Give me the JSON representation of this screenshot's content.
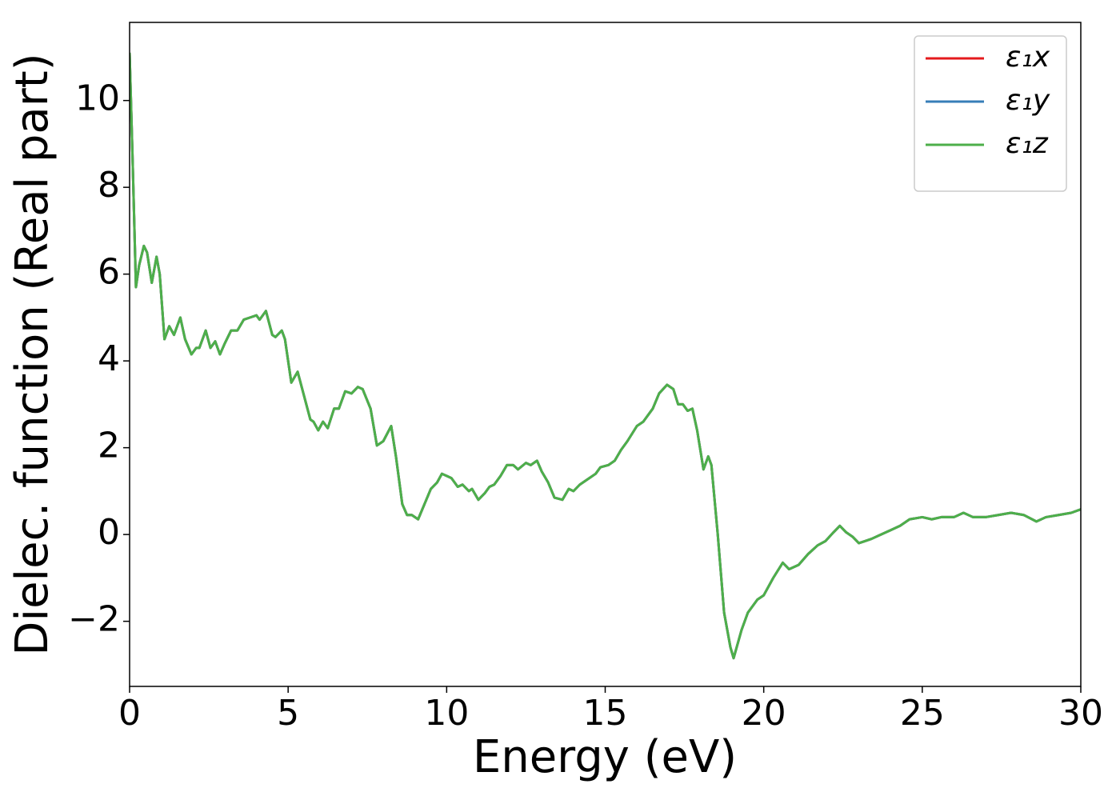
{
  "chart_data": {
    "type": "line",
    "xlabel": "Energy (eV)",
    "ylabel": "Dielec. function (Real part)",
    "xlim": [
      0,
      30
    ],
    "xticks": [
      0,
      5,
      10,
      15,
      20,
      25,
      30
    ],
    "ylim": [
      -3.5,
      11.8
    ],
    "yticks": [
      {
        "value": -2,
        "label": "−2"
      },
      0,
      2,
      4,
      6,
      8,
      10
    ],
    "legend": "upper right",
    "x": [
      0,
      0.1,
      0.2,
      0.3,
      0.45,
      0.55,
      0.7,
      0.85,
      0.95,
      1.1,
      1.25,
      1.4,
      1.6,
      1.75,
      1.95,
      2.1,
      2.2,
      2.4,
      2.55,
      2.7,
      2.85,
      3.0,
      3.2,
      3.4,
      3.6,
      3.8,
      4.0,
      4.1,
      4.3,
      4.5,
      4.6,
      4.8,
      4.9,
      5.1,
      5.3,
      5.5,
      5.7,
      5.8,
      5.95,
      6.1,
      6.25,
      6.45,
      6.6,
      6.8,
      7.0,
      7.2,
      7.35,
      7.6,
      7.8,
      8.0,
      8.25,
      8.4,
      8.6,
      8.75,
      8.9,
      9.1,
      9.3,
      9.5,
      9.7,
      9.85,
      10.0,
      10.15,
      10.35,
      10.5,
      10.7,
      10.8,
      11.0,
      11.2,
      11.35,
      11.5,
      11.7,
      11.9,
      12.1,
      12.25,
      12.5,
      12.65,
      12.85,
      13.0,
      13.2,
      13.4,
      13.65,
      13.85,
      14.0,
      14.2,
      14.5,
      14.7,
      14.85,
      15.1,
      15.3,
      15.5,
      15.7,
      16.0,
      16.2,
      16.5,
      16.7,
      16.95,
      17.15,
      17.3,
      17.45,
      17.6,
      17.75,
      17.9,
      18.1,
      18.25,
      18.35,
      18.55,
      18.75,
      18.95,
      19.05,
      19.3,
      19.5,
      19.8,
      20.0,
      20.3,
      20.6,
      20.8,
      21.1,
      21.4,
      21.7,
      21.95,
      22.2,
      22.4,
      22.6,
      22.8,
      23.0,
      23.2,
      23.4,
      23.7,
      24.0,
      24.3,
      24.6,
      25.0,
      25.3,
      25.6,
      26.0,
      26.3,
      26.6,
      27.0,
      27.4,
      27.8,
      28.2,
      28.6,
      28.9,
      29.3,
      29.7,
      30
    ],
    "series": [
      {
        "name": "ε₁x",
        "color": "#e41a1c",
        "values": [
          11.1,
          8.5,
          5.7,
          6.2,
          6.65,
          6.5,
          5.8,
          6.4,
          6.0,
          4.5,
          4.8,
          4.6,
          5.0,
          4.5,
          4.15,
          4.3,
          4.3,
          4.7,
          4.3,
          4.45,
          4.15,
          4.4,
          4.7,
          4.7,
          4.95,
          5.0,
          5.05,
          4.95,
          5.15,
          4.6,
          4.55,
          4.7,
          4.5,
          3.5,
          3.75,
          3.2,
          2.65,
          2.6,
          2.4,
          2.6,
          2.45,
          2.9,
          2.9,
          3.3,
          3.25,
          3.4,
          3.35,
          2.9,
          2.05,
          2.15,
          2.5,
          1.8,
          0.7,
          0.45,
          0.45,
          0.35,
          0.7,
          1.05,
          1.2,
          1.4,
          1.35,
          1.3,
          1.1,
          1.15,
          1.0,
          1.05,
          0.8,
          0.95,
          1.1,
          1.15,
          1.35,
          1.6,
          1.6,
          1.5,
          1.65,
          1.6,
          1.7,
          1.45,
          1.2,
          0.85,
          0.8,
          1.05,
          1.0,
          1.15,
          1.3,
          1.4,
          1.55,
          1.6,
          1.7,
          1.95,
          2.15,
          2.5,
          2.6,
          2.9,
          3.25,
          3.45,
          3.35,
          3.0,
          3.0,
          2.85,
          2.9,
          2.4,
          1.5,
          1.8,
          1.6,
          0.0,
          -1.8,
          -2.6,
          -2.85,
          -2.2,
          -1.8,
          -1.5,
          -1.4,
          -1.0,
          -0.65,
          -0.8,
          -0.7,
          -0.45,
          -0.25,
          -0.15,
          0.05,
          0.2,
          0.05,
          -0.05,
          -0.2,
          -0.15,
          -0.1,
          0.0,
          0.1,
          0.2,
          0.35,
          0.4,
          0.35,
          0.4,
          0.4,
          0.5,
          0.4,
          0.4,
          0.45,
          0.5,
          0.45,
          0.3,
          0.4,
          0.45,
          0.5,
          0.58
        ]
      },
      {
        "name": "ε₁y",
        "color": "#377eb8",
        "values": [
          11.1,
          8.5,
          5.7,
          6.2,
          6.65,
          6.5,
          5.8,
          6.4,
          6.0,
          4.5,
          4.8,
          4.6,
          5.0,
          4.5,
          4.15,
          4.3,
          4.3,
          4.7,
          4.3,
          4.45,
          4.15,
          4.4,
          4.7,
          4.7,
          4.95,
          5.0,
          5.05,
          4.95,
          5.15,
          4.6,
          4.55,
          4.7,
          4.5,
          3.5,
          3.75,
          3.2,
          2.65,
          2.6,
          2.4,
          2.6,
          2.45,
          2.9,
          2.9,
          3.3,
          3.25,
          3.4,
          3.35,
          2.9,
          2.05,
          2.15,
          2.5,
          1.8,
          0.7,
          0.45,
          0.45,
          0.35,
          0.7,
          1.05,
          1.2,
          1.4,
          1.35,
          1.3,
          1.1,
          1.15,
          1.0,
          1.05,
          0.8,
          0.95,
          1.1,
          1.15,
          1.35,
          1.6,
          1.6,
          1.5,
          1.65,
          1.6,
          1.7,
          1.45,
          1.2,
          0.85,
          0.8,
          1.05,
          1.0,
          1.15,
          1.3,
          1.4,
          1.55,
          1.6,
          1.7,
          1.95,
          2.15,
          2.5,
          2.6,
          2.9,
          3.25,
          3.45,
          3.35,
          3.0,
          3.0,
          2.85,
          2.9,
          2.4,
          1.5,
          1.8,
          1.6,
          0.0,
          -1.8,
          -2.6,
          -2.85,
          -2.2,
          -1.8,
          -1.5,
          -1.4,
          -1.0,
          -0.65,
          -0.8,
          -0.7,
          -0.45,
          -0.25,
          -0.15,
          0.05,
          0.2,
          0.05,
          -0.05,
          -0.2,
          -0.15,
          -0.1,
          0.0,
          0.1,
          0.2,
          0.35,
          0.4,
          0.35,
          0.4,
          0.4,
          0.5,
          0.4,
          0.4,
          0.45,
          0.5,
          0.45,
          0.3,
          0.4,
          0.45,
          0.5,
          0.58
        ]
      },
      {
        "name": "ε₁z",
        "color": "#4daf4a",
        "values": [
          11.1,
          8.5,
          5.7,
          6.2,
          6.65,
          6.5,
          5.8,
          6.4,
          6.0,
          4.5,
          4.8,
          4.6,
          5.0,
          4.5,
          4.15,
          4.3,
          4.3,
          4.7,
          4.3,
          4.45,
          4.15,
          4.4,
          4.7,
          4.7,
          4.95,
          5.0,
          5.05,
          4.95,
          5.15,
          4.6,
          4.55,
          4.7,
          4.5,
          3.5,
          3.75,
          3.2,
          2.65,
          2.6,
          2.4,
          2.6,
          2.45,
          2.9,
          2.9,
          3.3,
          3.25,
          3.4,
          3.35,
          2.9,
          2.05,
          2.15,
          2.5,
          1.8,
          0.7,
          0.45,
          0.45,
          0.35,
          0.7,
          1.05,
          1.2,
          1.4,
          1.35,
          1.3,
          1.1,
          1.15,
          1.0,
          1.05,
          0.8,
          0.95,
          1.1,
          1.15,
          1.35,
          1.6,
          1.6,
          1.5,
          1.65,
          1.6,
          1.7,
          1.45,
          1.2,
          0.85,
          0.8,
          1.05,
          1.0,
          1.15,
          1.3,
          1.4,
          1.55,
          1.6,
          1.7,
          1.95,
          2.15,
          2.5,
          2.6,
          2.9,
          3.25,
          3.45,
          3.35,
          3.0,
          3.0,
          2.85,
          2.9,
          2.4,
          1.5,
          1.8,
          1.6,
          0.0,
          -1.8,
          -2.6,
          -2.85,
          -2.2,
          -1.8,
          -1.5,
          -1.4,
          -1.0,
          -0.65,
          -0.8,
          -0.7,
          -0.45,
          -0.25,
          -0.15,
          0.05,
          0.2,
          0.05,
          -0.05,
          -0.2,
          -0.15,
          -0.1,
          0.0,
          0.1,
          0.2,
          0.35,
          0.4,
          0.35,
          0.4,
          0.4,
          0.5,
          0.4,
          0.4,
          0.45,
          0.5,
          0.45,
          0.3,
          0.4,
          0.45,
          0.5,
          0.58
        ]
      }
    ]
  }
}
